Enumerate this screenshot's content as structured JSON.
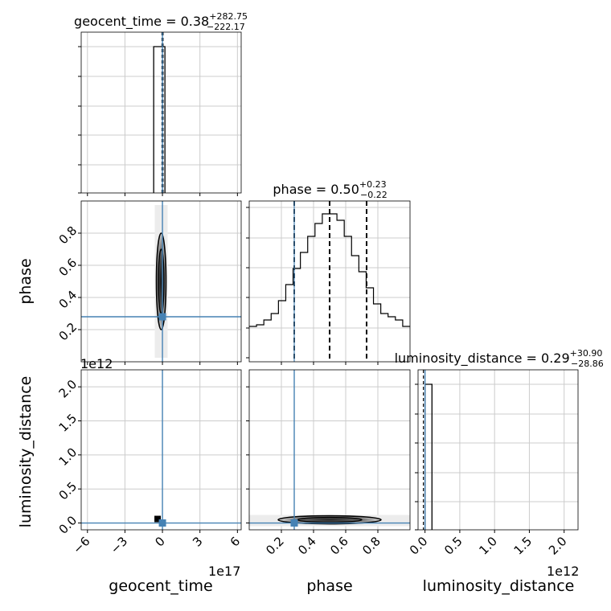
{
  "chart_data": {
    "type": "corner",
    "parameters": [
      "geocent_time",
      "phase",
      "luminosity_distance"
    ],
    "truth_color": "#4682b4",
    "titles": {
      "geocent_time": {
        "base": "geocent_time = 0.38",
        "upper": "+282.75",
        "lower": "−222.17"
      },
      "phase": {
        "base": "phase = 0.50",
        "upper": "+0.23",
        "lower": "−0.22"
      },
      "luminosity_distance": {
        "base": "luminosity_distance = 0.29",
        "upper": "+30.90",
        "lower": "−28.86"
      }
    },
    "axis_labels": {
      "geocent_time": "geocent_time",
      "phase": "phase",
      "luminosity_distance": "luminosity_distance"
    },
    "offsets": {
      "geocent_time_x": "1e17",
      "luminosity_distance_y": "1e12",
      "luminosity_distance_x": "1e12"
    },
    "ticks": {
      "geocent_time": [
        "−6",
        "−3",
        "0",
        "3",
        "6"
      ],
      "phase": [
        "0.2",
        "0.4",
        "0.6",
        "0.8"
      ],
      "luminosity_distance": [
        "0.0",
        "0.5",
        "1.0",
        "1.5",
        "2.0"
      ]
    },
    "geocent_time": {
      "xlim": [
        -6.5,
        6.3
      ],
      "truth": 0,
      "hist_bins": [
        [
          -0.7,
          0.2
        ]
      ],
      "quantile_lines": [
        -0.04,
        0.0,
        0.05
      ]
    },
    "phase": {
      "xlim": [
        0.0,
        1.0
      ],
      "truth": 0.28,
      "quantiles": [
        0.28,
        0.5,
        0.73
      ],
      "hist_step_heights": [
        0.22,
        0.23,
        0.26,
        0.3,
        0.38,
        0.48,
        0.58,
        0.68,
        0.78,
        0.86,
        0.92,
        0.92,
        0.88,
        0.78,
        0.66,
        0.56,
        0.46,
        0.36,
        0.3,
        0.28,
        0.26,
        0.22
      ]
    },
    "luminosity_distance": {
      "xlim": [
        -0.1,
        2.2
      ],
      "ylim": [
        -0.1,
        2.25
      ],
      "truth": 0.0,
      "hist_bins": [
        [
          0.0,
          0.1
        ]
      ]
    }
  }
}
